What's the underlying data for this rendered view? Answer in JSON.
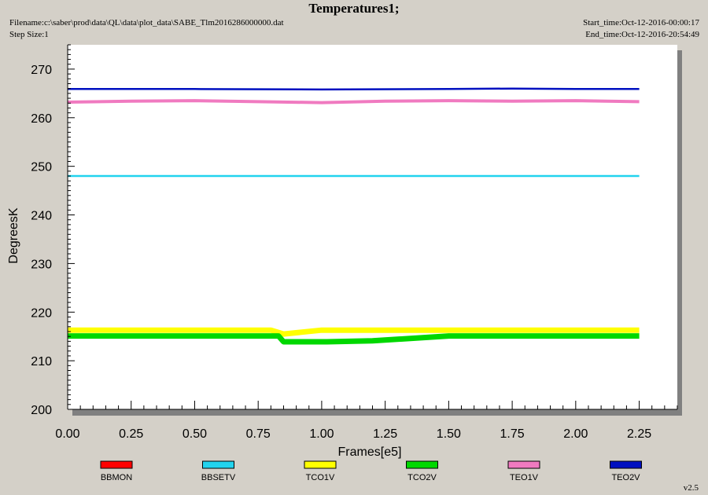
{
  "header": {
    "title": "Temperatures1;",
    "filename": "Filename:c:\\saber\\prod\\data\\QL\\data\\plot_data\\SABE_Tlm2016286000000.dat",
    "step_size": "Step Size:1",
    "start_time": "Start_time:Oct-12-2016-00:00:17",
    "end_time": "End_time:Oct-12-2016-20:54:49"
  },
  "version": "v2.5",
  "chart_data": {
    "type": "line",
    "title": "Temperatures1;",
    "xlabel": "Frames[e5]",
    "ylabel": "DegreesK",
    "xlim": [
      0.0,
      2.4
    ],
    "ylim": [
      200,
      275
    ],
    "x_ticks": [
      "0.00",
      "0.25",
      "0.50",
      "0.75",
      "1.00",
      "1.25",
      "1.50",
      "1.75",
      "2.00",
      "2.25"
    ],
    "y_ticks": [
      "200",
      "210",
      "220",
      "230",
      "240",
      "250",
      "260",
      "270"
    ],
    "grid": false,
    "legend_position": "bottom",
    "series": [
      {
        "name": "BBMON",
        "color": "#ff0000",
        "x": [],
        "y": []
      },
      {
        "name": "BBSETV",
        "color": "#22d3ee",
        "x": [
          0.0,
          0.5,
          1.0,
          1.5,
          2.0,
          2.25
        ],
        "y": [
          248.0,
          248.0,
          248.0,
          248.0,
          248.0,
          248.0
        ]
      },
      {
        "name": "TCO1V",
        "color": "#ffff00",
        "x": [
          0.0,
          0.5,
          0.8,
          0.85,
          1.0,
          1.2,
          1.5,
          2.0,
          2.25
        ],
        "y": [
          216.3,
          216.3,
          216.3,
          215.5,
          216.3,
          216.3,
          216.3,
          216.3,
          216.3
        ]
      },
      {
        "name": "TCO2V",
        "color": "#00d800",
        "x": [
          0.0,
          0.5,
          0.83,
          0.85,
          1.02,
          1.2,
          1.5,
          2.0,
          2.25
        ],
        "y": [
          215.1,
          215.1,
          215.1,
          213.9,
          213.9,
          214.1,
          215.1,
          215.1,
          215.1
        ]
      },
      {
        "name": "TEO1V",
        "color": "#f07ac0",
        "x": [
          0.0,
          0.25,
          0.5,
          0.75,
          1.0,
          1.25,
          1.5,
          1.75,
          2.0,
          2.25
        ],
        "y": [
          263.2,
          263.4,
          263.5,
          263.3,
          263.1,
          263.4,
          263.5,
          263.4,
          263.5,
          263.3
        ]
      },
      {
        "name": "TEO2V",
        "color": "#0010c0",
        "x": [
          0.0,
          0.5,
          1.0,
          1.5,
          1.75,
          2.0,
          2.25
        ],
        "y": [
          265.9,
          265.9,
          265.8,
          265.9,
          266.0,
          265.9,
          265.9
        ]
      }
    ]
  }
}
